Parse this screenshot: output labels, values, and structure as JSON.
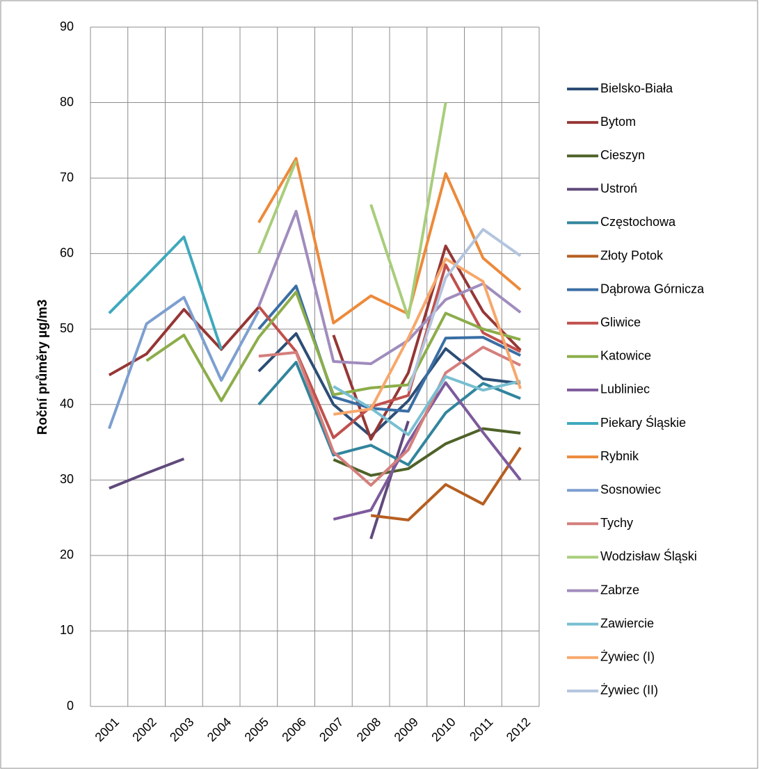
{
  "chart_data": {
    "type": "line",
    "y_label": "Roční průměry µg/m3",
    "categories": [
      "2001",
      "2002",
      "2003",
      "2004",
      "2005",
      "2006",
      "2007",
      "2008",
      "2009",
      "2010",
      "2011",
      "2012"
    ],
    "ylim": [
      0,
      90
    ],
    "yticks": [
      0,
      10,
      20,
      30,
      40,
      50,
      60,
      70,
      80,
      90
    ],
    "grid": true,
    "legend": "right",
    "series": [
      {
        "name": "Bielsko-Biała",
        "color": "#2c4d75",
        "values": [
          null,
          null,
          null,
          null,
          44.4,
          49.4,
          40,
          35.8,
          40.5,
          47.4,
          43.4,
          42.8
        ]
      },
      {
        "name": "Bytom",
        "color": "#953735",
        "values": [
          43.9,
          46.7,
          52.6,
          47.3,
          52.9,
          null,
          49.2,
          35.4,
          44.2,
          61,
          52.3,
          47.2
        ]
      },
      {
        "name": "Cieszyn",
        "color": "#4f6228",
        "values": [
          null,
          null,
          null,
          null,
          null,
          null,
          32.7,
          30.6,
          31.5,
          34.8,
          36.8,
          36.2
        ]
      },
      {
        "name": "Ustroń",
        "color": "#604a7b",
        "values": [
          28.9,
          30.9,
          32.8,
          null,
          null,
          null,
          null,
          22.2,
          37.8,
          null,
          null,
          null
        ]
      },
      {
        "name": "Częstochowa",
        "color": "#31859c",
        "values": [
          null,
          null,
          null,
          null,
          40,
          45.6,
          33.3,
          34.6,
          32,
          38.9,
          42.8,
          40.8
        ]
      },
      {
        "name": "Złoty Potok",
        "color": "#b65f20",
        "values": [
          null,
          null,
          null,
          null,
          null,
          null,
          null,
          25.3,
          24.7,
          29.4,
          26.8,
          34.3
        ]
      },
      {
        "name": "Dąbrowa Górnicza",
        "color": "#3a6ea5",
        "values": [
          null,
          null,
          null,
          null,
          50,
          55.7,
          41,
          39.5,
          39.1,
          48.8,
          48.9,
          46.5
        ]
      },
      {
        "name": "Gliwice",
        "color": "#c0504d",
        "values": [
          null,
          null,
          null,
          null,
          53,
          47,
          35.6,
          39.7,
          41.2,
          58.5,
          49.5,
          47
        ]
      },
      {
        "name": "Katowice",
        "color": "#8cad4a",
        "values": [
          null,
          45.8,
          49.2,
          40.5,
          48.9,
          54.9,
          41.3,
          42.2,
          42.6,
          52.1,
          50,
          48.6
        ]
      },
      {
        "name": "Lubliniec",
        "color": "#7d5a9c",
        "values": [
          null,
          null,
          null,
          null,
          null,
          null,
          24.8,
          26,
          35,
          42.9,
          36.3,
          30
        ]
      },
      {
        "name": "Piekary Śląskie",
        "color": "#3fa9bd",
        "values": [
          52.1,
          57.1,
          62.2,
          47.3,
          null,
          null,
          null,
          null,
          null,
          null,
          null,
          null
        ]
      },
      {
        "name": "Rybnik",
        "color": "#ec8a3b",
        "values": [
          null,
          null,
          null,
          null,
          64.1,
          72.6,
          50.8,
          54.4,
          52,
          70.6,
          59.4,
          55.2
        ]
      },
      {
        "name": "Sosnowiec",
        "color": "#7d9fd0",
        "values": [
          36.8,
          50.7,
          54.2,
          43.2,
          52.4,
          null,
          null,
          null,
          null,
          null,
          null,
          null
        ]
      },
      {
        "name": "Tychy",
        "color": "#d47f7c",
        "values": [
          null,
          null,
          null,
          null,
          46.4,
          46.9,
          33.7,
          29.3,
          34,
          44.2,
          47.6,
          45.2
        ]
      },
      {
        "name": "Wodzisław Śląski",
        "color": "#a9cd7c",
        "values": [
          null,
          null,
          null,
          null,
          60,
          72.3,
          null,
          66.5,
          51.5,
          80,
          null,
          null
        ]
      },
      {
        "name": "Zabrze",
        "color": "#a08cbd",
        "values": [
          null,
          null,
          null,
          null,
          53,
          65.6,
          45.7,
          45.4,
          48.5,
          53.9,
          56,
          52.2
        ]
      },
      {
        "name": "Zawiercie",
        "color": "#78bfd1",
        "values": [
          null,
          null,
          null,
          null,
          null,
          null,
          42.4,
          39.5,
          36,
          43.7,
          41.9,
          43.1
        ]
      },
      {
        "name": "Żywiec (I)",
        "color": "#f7a86c",
        "values": [
          null,
          null,
          null,
          null,
          null,
          null,
          38.7,
          39.4,
          48.8,
          59.3,
          56.3,
          42.1
        ]
      },
      {
        "name": "Żywiec (II)",
        "color": "#b3c4de",
        "values": [
          null,
          null,
          null,
          null,
          null,
          null,
          null,
          null,
          41.8,
          56.8,
          63.2,
          59.7
        ]
      }
    ]
  }
}
